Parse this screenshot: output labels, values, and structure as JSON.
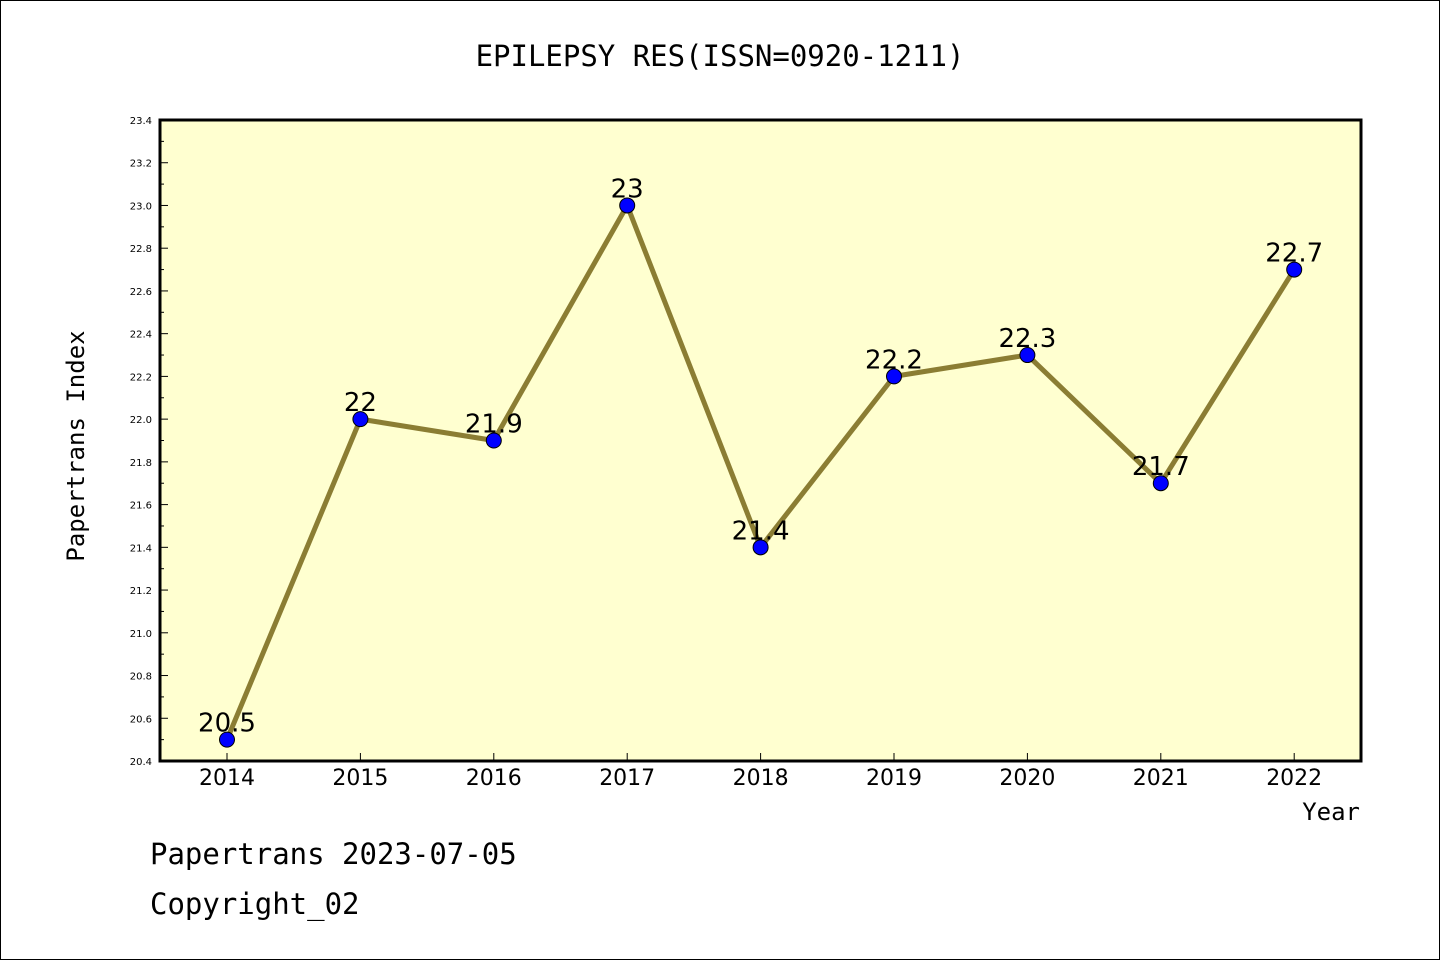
{
  "chart_data": {
    "type": "line",
    "title": "EPILEPSY RES(ISSN=0920-1211)",
    "xlabel": "Year",
    "ylabel": "Papertrans Index",
    "categories": [
      "2014",
      "2015",
      "2016",
      "2017",
      "2018",
      "2019",
      "2020",
      "2021",
      "2022"
    ],
    "series": [
      {
        "values": [
          20.5,
          22,
          21.9,
          23,
          21.4,
          22.2,
          22.3,
          21.7,
          22.7
        ]
      }
    ],
    "data_labels": [
      "20.5",
      "22",
      "21.9",
      "23",
      "21.4",
      "22.2",
      "22.3",
      "21.7",
      "22.7"
    ],
    "ylim": [
      20.4,
      23.4
    ],
    "yticks": [
      "20.4",
      "20.6",
      "20.8",
      "21.0",
      "21.2",
      "21.4",
      "21.6",
      "21.8",
      "22.0",
      "22.2",
      "22.4",
      "22.6",
      "22.8",
      "23.0",
      "23.2",
      "23.4"
    ],
    "grid": false,
    "legend": "none",
    "colors": {
      "plot_background": "#ffffd0",
      "line": "#8b7d33",
      "marker": "#0000ff"
    }
  },
  "footer": {
    "line1": "Papertrans 2023-07-05",
    "line2": "Copyright_02"
  }
}
